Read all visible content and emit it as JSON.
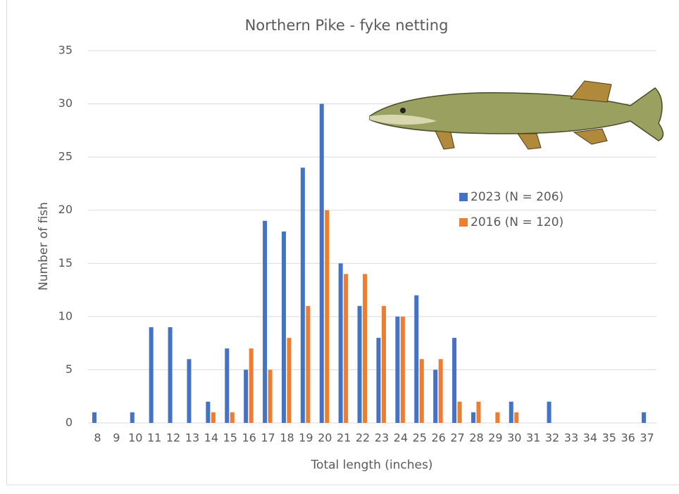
{
  "chart_data": {
    "type": "bar",
    "title": "Northern Pike - fyke netting",
    "x_label": "Total length (inches)",
    "y_label": "Number of fish",
    "categories": [
      "8",
      "9",
      "10",
      "11",
      "12",
      "13",
      "14",
      "15",
      "16",
      "17",
      "18",
      "19",
      "20",
      "21",
      "22",
      "23",
      "24",
      "25",
      "26",
      "27",
      "28",
      "29",
      "30",
      "31",
      "32",
      "33",
      "34",
      "35",
      "36",
      "37"
    ],
    "series": [
      {
        "name": "2023 (N = 206)",
        "color": "#4472c4",
        "values": [
          1,
          0,
          1,
          9,
          9,
          6,
          2,
          7,
          5,
          19,
          18,
          24,
          30,
          15,
          11,
          8,
          10,
          12,
          5,
          8,
          1,
          0,
          2,
          0,
          2,
          0,
          0,
          0,
          0,
          1
        ]
      },
      {
        "name": "2016 (N = 120)",
        "color": "#ed7d31",
        "values": [
          0,
          0,
          0,
          0,
          0,
          0,
          1,
          1,
          7,
          5,
          8,
          11,
          20,
          14,
          14,
          11,
          10,
          6,
          6,
          2,
          2,
          1,
          1,
          0,
          0,
          0,
          0,
          0,
          0,
          0
        ]
      }
    ],
    "ylim": [
      0,
      35
    ],
    "yticks": [
      0,
      5,
      10,
      15,
      20,
      25,
      30,
      35
    ],
    "grid": true
  }
}
